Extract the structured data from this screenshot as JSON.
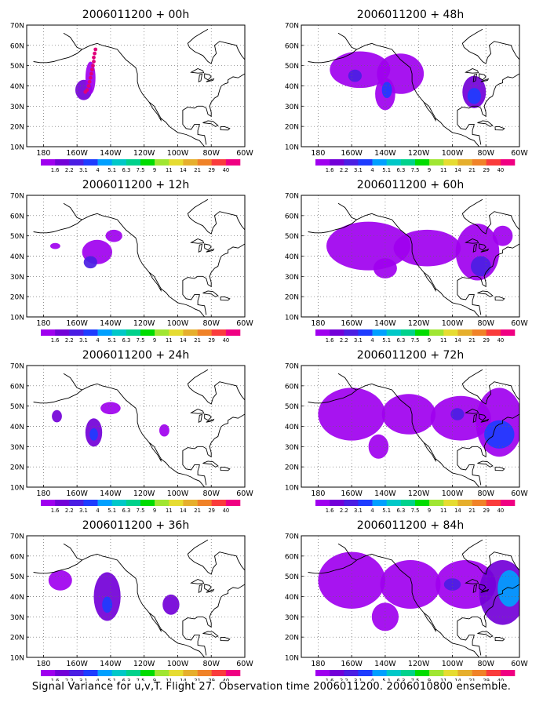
{
  "caption": "Signal Variance for u,v,T. Flight 27. Observation time 2006011200. 2006010800 ensemble.",
  "latitude_labels": [
    "10N",
    "20N",
    "30N",
    "40N",
    "50N",
    "60N",
    "70N"
  ],
  "longitude_labels": [
    "180",
    "160W",
    "140W",
    "120W",
    "100W",
    "80W",
    "60W"
  ],
  "colorbar": {
    "levels": [
      "1.6",
      "2.2",
      "3.1",
      "4",
      "5.1",
      "6.3",
      "7.5",
      "9",
      "11",
      "14",
      "21",
      "29",
      "40"
    ],
    "colors": [
      "#9f00ef",
      "#7300d8",
      "#4b1ee3",
      "#1e3cff",
      "#00a0ff",
      "#00c8c8",
      "#00d28c",
      "#00dc00",
      "#a0e632",
      "#e6dc32",
      "#e6af2d",
      "#f08228",
      "#fa3c3c",
      "#f00082"
    ]
  },
  "panels": [
    {
      "title": "2006011200 + 00h",
      "blobs": [
        {
          "lon": -156,
          "lat": 38,
          "rx": 5,
          "ry": 5,
          "level": 1
        },
        {
          "lon": -152,
          "lat": 44,
          "rx": 3,
          "ry": 8,
          "level": 0
        }
      ],
      "flight_track": [
        [
          -149,
          58
        ],
        [
          -149.5,
          56
        ],
        [
          -150,
          54
        ],
        [
          -150,
          52
        ],
        [
          -150.5,
          50
        ],
        [
          -151,
          48
        ],
        [
          -151.5,
          46
        ],
        [
          -152,
          44
        ],
        [
          -152.5,
          42
        ],
        [
          -153,
          40
        ],
        [
          -154,
          38
        ],
        [
          -155,
          37
        ]
      ]
    },
    {
      "title": "2006011200 + 48h",
      "blobs": [
        {
          "lon": -155,
          "lat": 48,
          "rx": 18,
          "ry": 9,
          "level": 0
        },
        {
          "lon": -131,
          "lat": 46,
          "rx": 14,
          "ry": 10,
          "level": 0
        },
        {
          "lon": -140,
          "lat": 36,
          "rx": 6,
          "ry": 8,
          "level": 0
        },
        {
          "lon": -158,
          "lat": 45,
          "rx": 4,
          "ry": 3,
          "level": 2
        },
        {
          "lon": -139,
          "lat": 38,
          "rx": 3,
          "ry": 4,
          "level": 3
        },
        {
          "lon": -87,
          "lat": 37,
          "rx": 7,
          "ry": 8,
          "level": 1
        },
        {
          "lon": -87,
          "lat": 35,
          "rx": 4,
          "ry": 4,
          "level": 3
        }
      ]
    },
    {
      "title": "2006011200 + 12h",
      "blobs": [
        {
          "lon": -173,
          "lat": 45,
          "rx": 3,
          "ry": 1.5,
          "level": 0
        },
        {
          "lon": -148,
          "lat": 42,
          "rx": 9,
          "ry": 6,
          "level": 0
        },
        {
          "lon": -138,
          "lat": 50,
          "rx": 5,
          "ry": 3,
          "level": 0
        },
        {
          "lon": -152,
          "lat": 37,
          "rx": 4,
          "ry": 3,
          "level": 2
        }
      ]
    },
    {
      "title": "2006011200 + 60h",
      "blobs": [
        {
          "lon": -150,
          "lat": 45,
          "rx": 25,
          "ry": 12,
          "level": 0
        },
        {
          "lon": -115,
          "lat": 44,
          "rx": 20,
          "ry": 9,
          "level": 0
        },
        {
          "lon": -85,
          "lat": 42,
          "rx": 13,
          "ry": 14,
          "level": 0
        },
        {
          "lon": -140,
          "lat": 34,
          "rx": 7,
          "ry": 5,
          "level": 0
        },
        {
          "lon": -70,
          "lat": 50,
          "rx": 6,
          "ry": 5,
          "level": 0
        },
        {
          "lon": -83,
          "lat": 35,
          "rx": 6,
          "ry": 5,
          "level": 2
        }
      ]
    },
    {
      "title": "2006011200 + 24h",
      "blobs": [
        {
          "lon": -172,
          "lat": 45,
          "rx": 3,
          "ry": 3,
          "level": 1
        },
        {
          "lon": -150,
          "lat": 37,
          "rx": 5,
          "ry": 7,
          "level": 1
        },
        {
          "lon": -140,
          "lat": 49,
          "rx": 6,
          "ry": 3,
          "level": 0
        },
        {
          "lon": -150,
          "lat": 36,
          "rx": 2.5,
          "ry": 3,
          "level": 3
        },
        {
          "lon": -108,
          "lat": 38,
          "rx": 3,
          "ry": 3,
          "level": 0
        }
      ]
    },
    {
      "title": "2006011200 + 72h",
      "blobs": [
        {
          "lon": -160,
          "lat": 46,
          "rx": 20,
          "ry": 13,
          "level": 0
        },
        {
          "lon": -126,
          "lat": 46,
          "rx": 16,
          "ry": 10,
          "level": 0
        },
        {
          "lon": -95,
          "lat": 44,
          "rx": 18,
          "ry": 11,
          "level": 0
        },
        {
          "lon": -72,
          "lat": 42,
          "rx": 14,
          "ry": 17,
          "level": 0
        },
        {
          "lon": -144,
          "lat": 30,
          "rx": 6,
          "ry": 6,
          "level": 0
        },
        {
          "lon": -72,
          "lat": 36,
          "rx": 9,
          "ry": 7,
          "level": 3
        },
        {
          "lon": -97,
          "lat": 46,
          "rx": 4,
          "ry": 3,
          "level": 2
        }
      ]
    },
    {
      "title": "2006011200 + 36h",
      "blobs": [
        {
          "lon": -170,
          "lat": 48,
          "rx": 7,
          "ry": 5,
          "level": 0
        },
        {
          "lon": -142,
          "lat": 40,
          "rx": 8,
          "ry": 12,
          "level": 1
        },
        {
          "lon": -142,
          "lat": 36,
          "rx": 3,
          "ry": 4,
          "level": 3
        },
        {
          "lon": -104,
          "lat": 36,
          "rx": 5,
          "ry": 5,
          "level": 1
        }
      ]
    },
    {
      "title": "2006011200 + 84h",
      "blobs": [
        {
          "lon": -160,
          "lat": 48,
          "rx": 20,
          "ry": 14,
          "level": 0
        },
        {
          "lon": -125,
          "lat": 46,
          "rx": 18,
          "ry": 12,
          "level": 0
        },
        {
          "lon": -92,
          "lat": 46,
          "rx": 18,
          "ry": 12,
          "level": 0
        },
        {
          "lon": -140,
          "lat": 30,
          "rx": 8,
          "ry": 7,
          "level": 0
        },
        {
          "lon": -70,
          "lat": 42,
          "rx": 14,
          "ry": 16,
          "level": 1
        },
        {
          "lon": -66,
          "lat": 44,
          "rx": 7,
          "ry": 9,
          "level": 4
        },
        {
          "lon": -100,
          "lat": 46,
          "rx": 5,
          "ry": 3,
          "level": 2
        }
      ]
    }
  ]
}
